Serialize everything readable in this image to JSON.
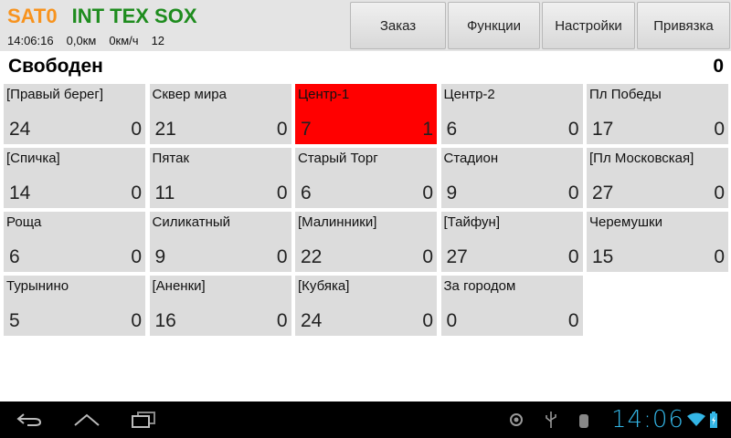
{
  "header": {
    "sat": "SAT0",
    "name": "INT TEX SOX",
    "time": "14:06:16",
    "distance": "0,0км",
    "speed": "0км/ч",
    "value": "12"
  },
  "buttons": [
    "Заказ",
    "Функции",
    "Настройки",
    "Привязка"
  ],
  "status": {
    "label": "Свободен",
    "count": "0"
  },
  "highlight_color": "#ff0000",
  "zones": [
    {
      "name": "[Правый берег]",
      "left": "24",
      "right": "0"
    },
    {
      "name": "Сквер мира",
      "left": "21",
      "right": "0"
    },
    {
      "name": "Центр-1",
      "left": "7",
      "right": "1",
      "highlight": true
    },
    {
      "name": "Центр-2",
      "left": "6",
      "right": "0"
    },
    {
      "name": "Пл Победы",
      "left": "17",
      "right": "0"
    },
    {
      "name": "[Спичка]",
      "left": "14",
      "right": "0"
    },
    {
      "name": "Пятак",
      "left": "11",
      "right": "0"
    },
    {
      "name": "Старый Торг",
      "left": "6",
      "right": "0"
    },
    {
      "name": "Стадион",
      "left": "9",
      "right": "0"
    },
    {
      "name": "[Пл Московская]",
      "left": "27",
      "right": "0"
    },
    {
      "name": "Роща",
      "left": "6",
      "right": "0"
    },
    {
      "name": "Силикатный",
      "left": "9",
      "right": "0"
    },
    {
      "name": "[Малинники]",
      "left": "22",
      "right": "0"
    },
    {
      "name": "[Тайфун]",
      "left": "27",
      "right": "0"
    },
    {
      "name": "Черемушки",
      "left": "15",
      "right": "0"
    },
    {
      "name": "Турынино",
      "left": "5",
      "right": "0"
    },
    {
      "name": "[Аненки]",
      "left": "16",
      "right": "0"
    },
    {
      "name": "[Кубяка]",
      "left": "24",
      "right": "0"
    },
    {
      "name": "За городом",
      "left": "0",
      "right": "0"
    }
  ],
  "systembar": {
    "clock": "14:06",
    "icons": [
      "back-icon",
      "home-icon",
      "recent-apps-icon",
      "gps-icon",
      "usb-icon",
      "android-debug-icon",
      "wifi-icon",
      "battery-charging-icon"
    ]
  }
}
